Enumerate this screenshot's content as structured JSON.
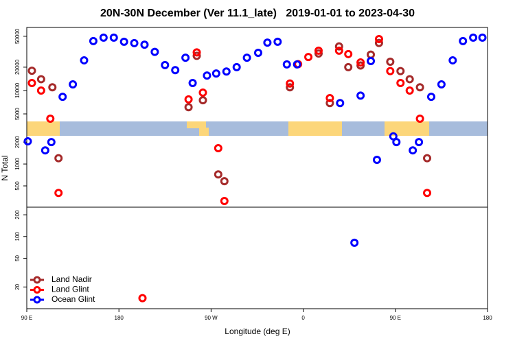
{
  "chart_data": {
    "type": "scatter",
    "title": "20N-30N December (Ver 11.1_late)   2019-01-01 to 2023-04-30",
    "x_label": "Longitude (deg E)",
    "y_label": "N Total",
    "log_y": true,
    "legend": "bottom-left",
    "xlim": [
      90,
      540
    ],
    "xticks": [
      {
        "value": 90,
        "label": "90 E"
      },
      180,
      {
        "value": 270,
        "label": "90 W"
      },
      {
        "value": 360,
        "label": "0"
      },
      {
        "value": 450,
        "label": "90 E"
      },
      {
        "value": 540,
        "label": "180"
      }
    ],
    "panels": [
      {
        "ylim": [
          4000,
          65000
        ],
        "yticks": [
          5000,
          10000,
          20000,
          50000
        ]
      },
      {
        "ylim": [
          255,
          2440
        ],
        "yticks": [
          500,
          1000,
          2000
        ]
      },
      {
        "ylim": [
          10,
          255
        ],
        "yticks": [
          20,
          50,
          100,
          200
        ]
      }
    ],
    "series": [
      {
        "name": "Land Nadir",
        "color": "#a52a2a",
        "x": [
          95,
          104,
          115,
          121,
          256,
          248,
          262,
          277,
          283,
          347,
          375,
          386,
          395,
          404,
          416,
          426,
          434,
          445,
          455,
          464,
          474,
          481
        ],
        "values": [
          18000,
          14000,
          11000,
          1200,
          28000,
          6100,
          7500,
          720,
          580,
          11000,
          30000,
          6900,
          37000,
          20000,
          21000,
          29000,
          41000,
          23500,
          17800,
          14000,
          11000,
          1200
        ]
      },
      {
        "name": "Land Glint",
        "color": "#ff0000",
        "x": [
          95,
          104,
          113,
          121,
          203,
          248,
          256,
          262,
          277,
          283,
          347,
          355,
          365,
          375,
          386,
          395,
          404,
          416,
          434,
          445,
          455,
          464,
          474,
          481
        ],
        "values": [
          12500,
          10000,
          4340,
          400,
          14,
          7700,
          31000,
          9400,
          1650,
          310,
          12300,
          21900,
          27000,
          32600,
          8000,
          32600,
          29500,
          23000,
          46000,
          17800,
          12500,
          10000,
          4340,
          400
        ]
      },
      {
        "name": "Ocean Glint",
        "color": "#0000ff",
        "x": [
          91,
          108,
          114,
          125,
          135,
          146,
          155,
          165,
          175,
          185,
          195,
          205,
          215,
          225,
          235,
          245,
          252,
          266,
          275,
          285,
          295,
          305,
          316,
          325,
          335,
          344,
          354,
          396,
          410,
          416,
          426,
          432,
          448,
          451,
          467,
          473,
          485,
          495,
          506,
          516,
          526,
          535
        ],
        "values": [
          2050,
          1540,
          2000,
          8300,
          12000,
          24500,
          43400,
          48000,
          48000,
          42500,
          40800,
          39000,
          31500,
          21300,
          18300,
          26500,
          12500,
          15600,
          16600,
          17600,
          20000,
          26500,
          30600,
          41400,
          42500,
          21700,
          21700,
          6900,
          82,
          8600,
          24000,
          1140,
          2400,
          2000,
          1540,
          2000,
          8300,
          12000,
          24500,
          43400,
          48000,
          48000
        ]
      }
    ]
  }
}
